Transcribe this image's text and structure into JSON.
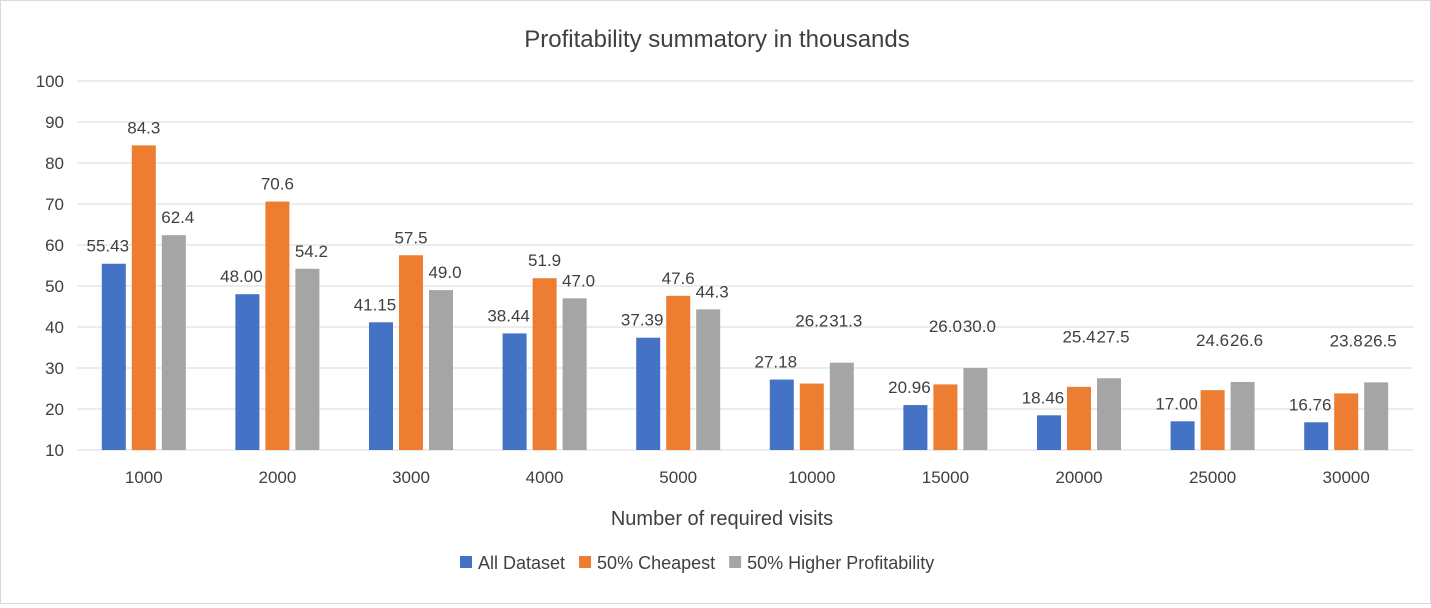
{
  "chart_data": {
    "type": "bar",
    "title": "Profitability summatory in thousands",
    "xlabel": "Number of required visits",
    "ylabel": "",
    "ylim": [
      10,
      100
    ],
    "yticks": [
      "10",
      "20",
      "30",
      "40",
      "50",
      "60",
      "70",
      "80",
      "90",
      "100"
    ],
    "grid": true,
    "legend_position": "bottom",
    "categories": [
      "1000",
      "2000",
      "3000",
      "4000",
      "5000",
      "10000",
      "15000",
      "20000",
      "25000",
      "30000"
    ],
    "series": [
      {
        "name": "All Dataset",
        "color": "#4472C4",
        "values": [
          55.43,
          48.0,
          41.15,
          38.44,
          37.39,
          27.18,
          20.96,
          18.46,
          17.0,
          16.76
        ],
        "labels": [
          "55.43",
          "48.00",
          "41.15",
          "38.44",
          "37.39",
          "27.18",
          "20.96",
          "18.46",
          "17.00",
          "16.76"
        ]
      },
      {
        "name": "50% Cheapest",
        "color": "#ED7D31",
        "values": [
          84.3,
          70.6,
          57.5,
          51.9,
          47.6,
          26.2,
          26.0,
          25.4,
          24.6,
          23.8
        ],
        "labels": [
          "84.3",
          "70.6",
          "57.5",
          "51.9",
          "47.6",
          "26.2",
          "26.0",
          "25.4",
          "24.6",
          "23.8"
        ]
      },
      {
        "name": "50% Higher Profitability",
        "color": "#A5A5A5",
        "values": [
          62.4,
          54.2,
          49.0,
          47.0,
          44.3,
          31.3,
          30.0,
          27.5,
          26.6,
          26.5
        ],
        "labels": [
          "62.4",
          "54.2",
          "49.0",
          "47.0",
          "44.3",
          "31.3",
          "30.0",
          "27.5",
          "26.6",
          "26.5"
        ]
      }
    ]
  }
}
